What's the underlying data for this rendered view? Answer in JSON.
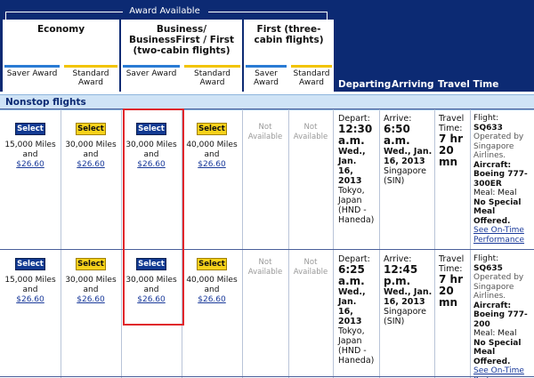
{
  "header": {
    "award_available": "Award Available",
    "economy": {
      "title": "Economy",
      "saver": "Saver Award",
      "standard": "Standard Award"
    },
    "business": {
      "title_lines": [
        "Business/",
        "BusinessFirst / First",
        "(two-cabin flights)"
      ],
      "saver": "Saver Award",
      "standard": "Standard Award"
    },
    "first": {
      "title_lines": [
        "First (three-",
        "cabin flights)"
      ],
      "saver": "Saver Award",
      "standard": "Standard Award"
    },
    "columns": {
      "departing": "Departing",
      "arriving": "Arriving",
      "travel_time": "Travel Time"
    }
  },
  "section_title": "Nonstop flights",
  "common": {
    "select": "Select",
    "and": "and",
    "not_available": [
      "Not",
      "Available"
    ],
    "fee": "$26.60",
    "miles_15": "15,000 Miles",
    "miles_30": "30,000 Miles",
    "miles_40": "40,000 Miles",
    "depart_label": "Depart:",
    "arrive_label": "Arrive:",
    "travel_label": [
      "Travel",
      "Time:"
    ],
    "flight_label": "Flight:",
    "aircraft_label": "Aircraft:",
    "on_time_link": [
      "See On-Time",
      "Performance"
    ]
  },
  "flights": [
    {
      "depart_time": [
        "12:30",
        "a.m."
      ],
      "depart_date": [
        "Wed., Jan.",
        "16, 2013"
      ],
      "depart_place": [
        "Tokyo,",
        "Japan",
        "(HND -",
        "Haneda)"
      ],
      "arrive_time": [
        "6:50",
        "a.m."
      ],
      "arrive_date": [
        "Wed., Jan.",
        "16, 2013"
      ],
      "arrive_place": [
        "Singapore",
        "(SIN)"
      ],
      "travel_time": [
        "7 hr",
        "20",
        "mn"
      ],
      "flight_no": "SQ633",
      "operated_by": [
        "Operated by",
        "Singapore",
        "Airlines."
      ],
      "aircraft": [
        "Boeing 777-",
        "300ER"
      ],
      "meal": [
        "Meal: Meal",
        "No Special",
        "Meal",
        "Offered."
      ]
    },
    {
      "depart_time": [
        "6:25",
        "a.m."
      ],
      "depart_date": [
        "Wed., Jan.",
        "16, 2013"
      ],
      "depart_place": [
        "Tokyo,",
        "Japan",
        "(HND -",
        "Haneda)"
      ],
      "arrive_time": [
        "12:45",
        "p.m."
      ],
      "arrive_date": [
        "Wed., Jan.",
        "16, 2013"
      ],
      "arrive_place": [
        "Singapore",
        "(SIN)"
      ],
      "travel_time": [
        "7 hr",
        "20",
        "mn"
      ],
      "flight_no": "SQ635",
      "operated_by": [
        "Operated by",
        "Singapore",
        "Airlines."
      ],
      "aircraft": [
        "Boeing 777-",
        "200"
      ],
      "meal": [
        "Meal: Meal",
        "No Special",
        "Meal",
        "Offered."
      ]
    }
  ],
  "colors": {
    "header_bg": "#0c2a73",
    "saver_bar": "#2a7bd4",
    "standard_bar": "#f2c400",
    "highlight": "#e0262b",
    "section_bg": "#cfe3f6"
  }
}
